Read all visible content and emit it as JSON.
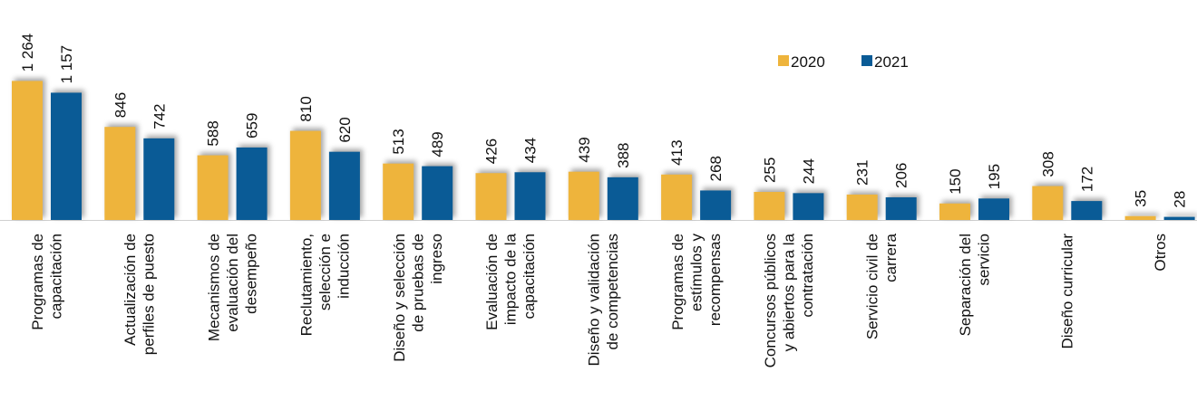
{
  "chart_data": {
    "type": "bar",
    "categories": [
      "Programas de capacitación",
      "Actualización de perfiles de puesto",
      "Mecanismos de evaluación del desempeño",
      "Reclutamiento, selección e inducción",
      "Diseño y selección de pruebas de ingreso",
      "Evaluación de impacto de la capacitación",
      "Diseño y validación de competencias",
      "Programas de estímulos y recompensas",
      "Concursos públicos y abiertos para la contratación",
      "Servicio civil de carrera",
      "Separación del servicio",
      "Diseño curricular",
      "Otros"
    ],
    "series": [
      {
        "name": "2020",
        "color": "#eeb43c",
        "values": [
          1264,
          846,
          588,
          810,
          513,
          426,
          439,
          413,
          255,
          231,
          150,
          308,
          35
        ],
        "value_labels": [
          "1 264",
          "846",
          "588",
          "810",
          "513",
          "426",
          "439",
          "413",
          "255",
          "231",
          "150",
          "308",
          "35"
        ]
      },
      {
        "name": "2021",
        "color": "#0a5b96",
        "values": [
          1157,
          742,
          659,
          620,
          489,
          434,
          388,
          268,
          244,
          206,
          195,
          172,
          28
        ],
        "value_labels": [
          "1 157",
          "742",
          "659",
          "620",
          "489",
          "434",
          "388",
          "268",
          "244",
          "206",
          "195",
          "172",
          "28"
        ]
      }
    ],
    "legend": "top-right"
  }
}
